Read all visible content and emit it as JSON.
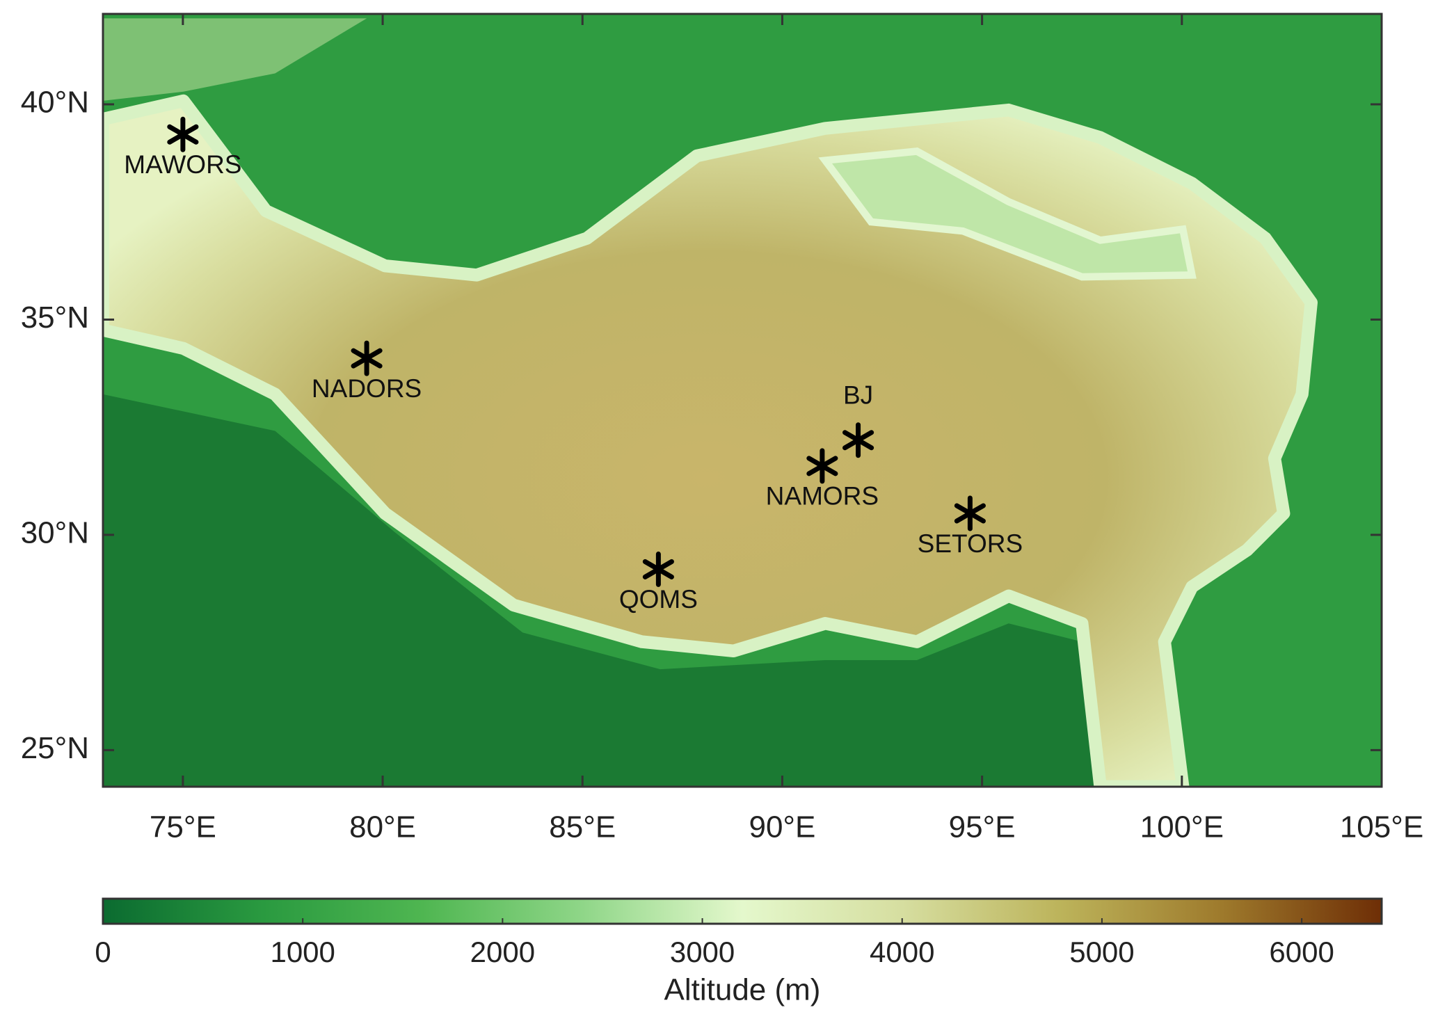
{
  "chart_data": {
    "type": "map",
    "xlim": [
      73,
      105
    ],
    "ylim": [
      24.15,
      42.1
    ],
    "xticks": [
      {
        "value": 75,
        "label": "75°E"
      },
      {
        "value": 80,
        "label": "80°E"
      },
      {
        "value": 85,
        "label": "85°E"
      },
      {
        "value": 90,
        "label": "90°E"
      },
      {
        "value": 95,
        "label": "95°E"
      },
      {
        "value": 100,
        "label": "100°E"
      },
      {
        "value": 105,
        "label": "105°E"
      }
    ],
    "yticks": [
      {
        "value": 25,
        "label": "25°N"
      },
      {
        "value": 30,
        "label": "30°N"
      },
      {
        "value": 35,
        "label": "35°N"
      },
      {
        "value": 40,
        "label": "40°N"
      }
    ],
    "stations": {
      "labels": [
        "MAWORS",
        "NADORS",
        "BJ",
        "NAMORS",
        "SETORS",
        "QOMS"
      ],
      "x": [
        75.0,
        79.6,
        91.9,
        91.0,
        94.7,
        86.9
      ],
      "y": [
        39.3,
        34.1,
        32.2,
        31.6,
        30.5,
        29.2
      ],
      "color": "#000000"
    },
    "colorbar": {
      "label": "Altitude (m)",
      "lim": [
        0,
        6400
      ],
      "ticks": [
        0,
        1000,
        2000,
        3000,
        4000,
        5000,
        6000
      ],
      "colormap": [
        "#0b6b30",
        "#2a9a40",
        "#4fb651",
        "#8fd688",
        "#e4f8cc",
        "#d6dea0",
        "#bcb35a",
        "#9e7a2c",
        "#6e2e06"
      ]
    }
  }
}
